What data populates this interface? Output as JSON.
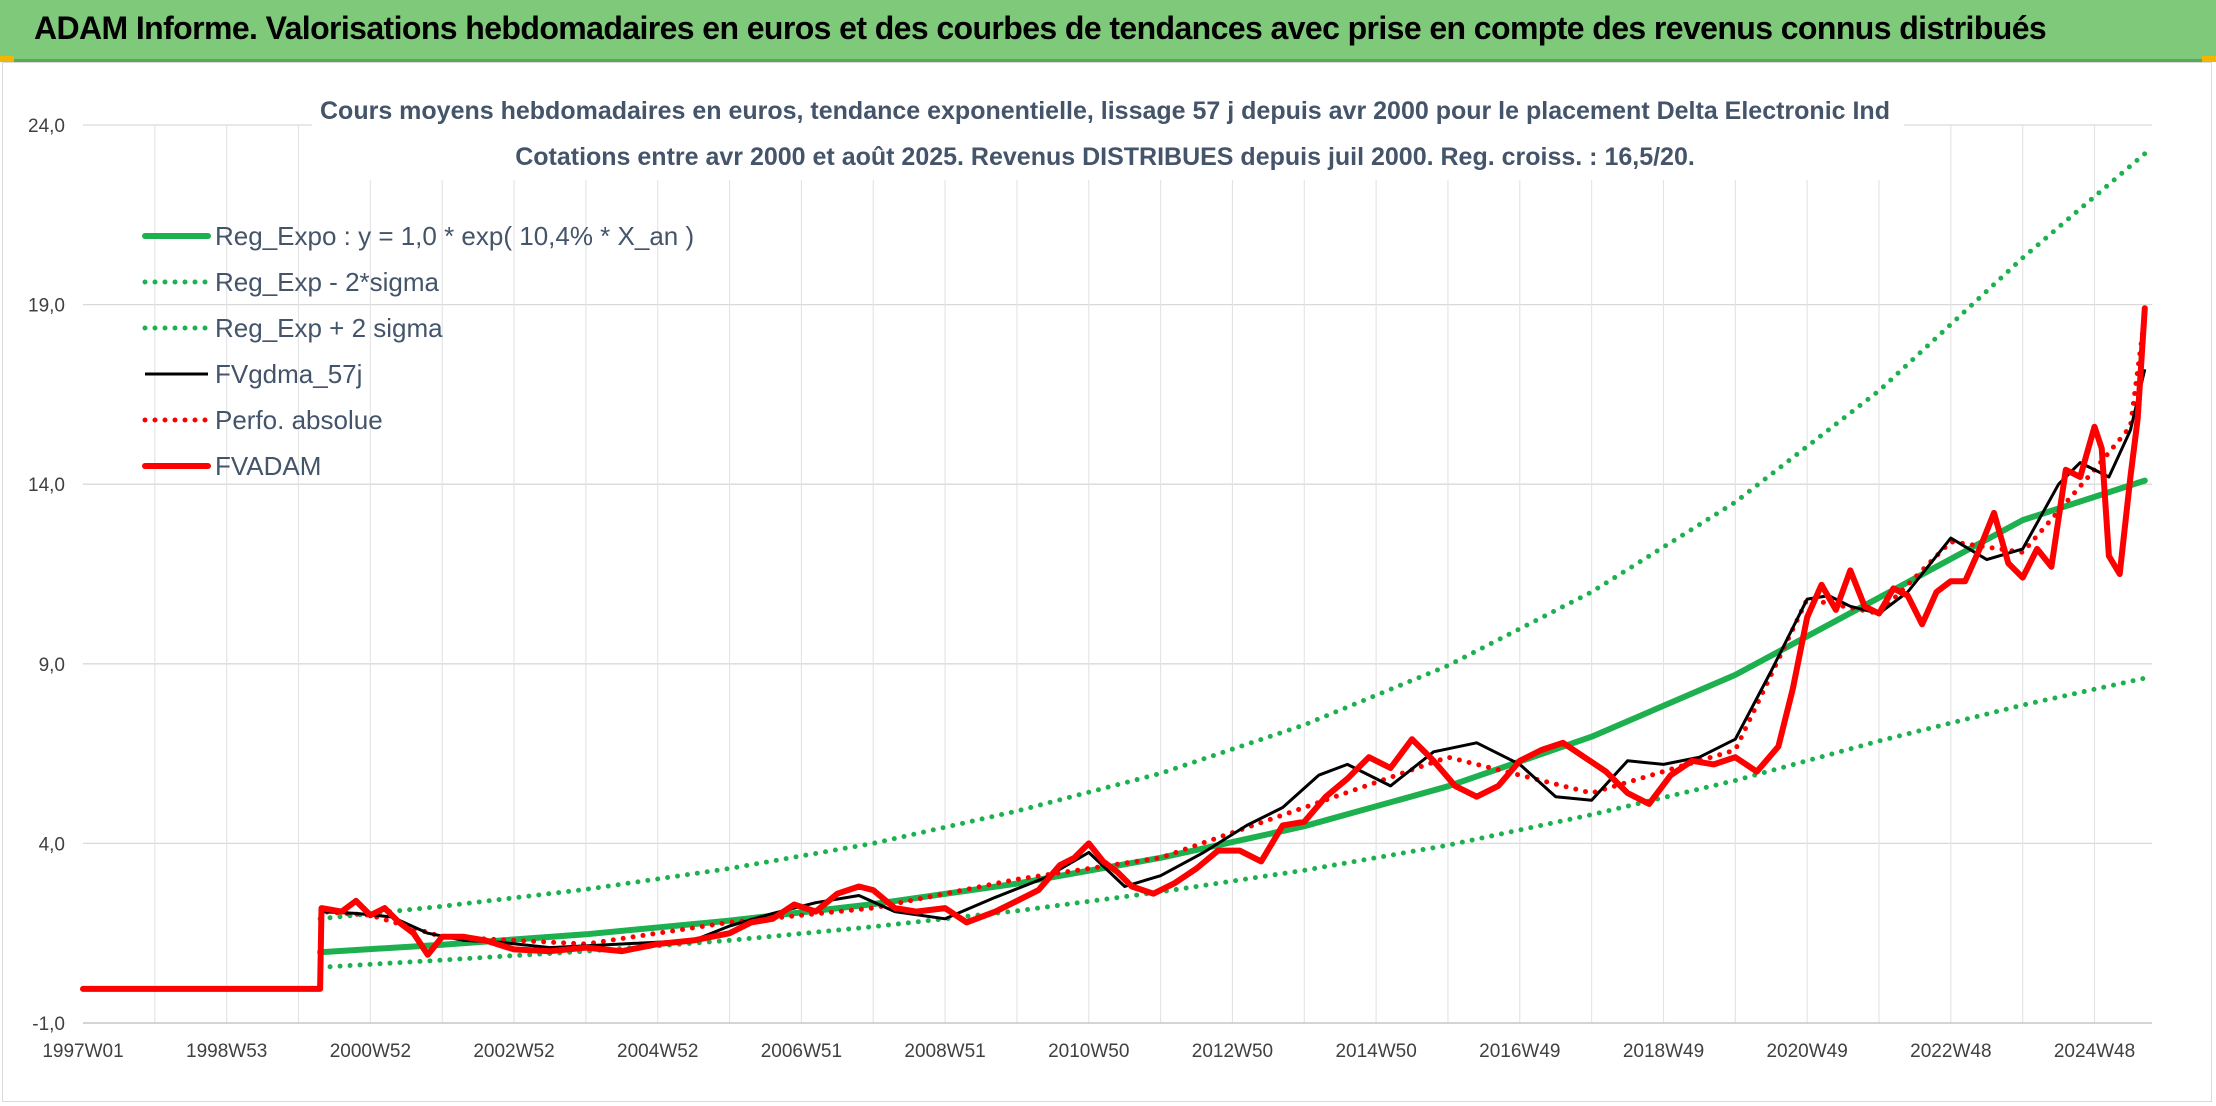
{
  "header": {
    "title": "ADAM Informe. Valorisations hebdomadaires en euros et des courbes de tendances avec prise en compte des revenus connus distribués"
  },
  "colors": {
    "banner": "#7fc97a",
    "trend": "#1db04f",
    "black": "#000000",
    "red": "#ff0000",
    "grid": "#d9d9d9",
    "title_text": "#44546a"
  },
  "chart_data": {
    "type": "line",
    "title": "Cours moyens hebdomadaires en euros, tendance exponentielle, lissage 57 j depuis avr 2000 pour le placement Delta Electronic Ind",
    "subtitle": "Cotations entre avr 2000 et août 2025. Revenus DISTRIBUES depuis juil 2000. Reg. croiss. : 16,5/20.",
    "xlabel": "",
    "ylabel": "",
    "ylim": [
      -1,
      24
    ],
    "xlim": [
      1997.0,
      2025.8
    ],
    "yticks": [
      "24,0",
      "19,0",
      "14,0",
      "9,0",
      "4,0",
      "-1,0"
    ],
    "ytick_values": [
      24,
      19,
      14,
      9,
      4,
      -1
    ],
    "xticks": [
      "1997W01",
      "1998W53",
      "2000W52",
      "2002W52",
      "2004W52",
      "2006W51",
      "2008W51",
      "2010W50",
      "2012W50",
      "2014W50",
      "2016W49",
      "2018W49",
      "2020W49",
      "2022W48",
      "2024W48"
    ],
    "xtick_values": [
      1997.0,
      1999.0,
      2001.0,
      2003.0,
      2005.0,
      2007.0,
      2009.0,
      2011.0,
      2013.0,
      2015.0,
      2017.0,
      2019.0,
      2021.0,
      2023.0,
      2025.0
    ],
    "grid": true,
    "legend_position": "top-left",
    "series": [
      {
        "name": "Reg_Expo : y = 1,0 * exp( 10,4% *  X_an )",
        "style": "solid-thick",
        "color": "#1db04f",
        "x": [
          2000.3,
          2002,
          2004,
          2006,
          2008,
          2010,
          2012,
          2014,
          2016,
          2018,
          2020,
          2022,
          2024,
          2025.7
        ],
        "y": [
          0.97,
          1.18,
          1.47,
          1.85,
          2.31,
          2.88,
          3.6,
          4.48,
          5.59,
          6.97,
          8.69,
          10.84,
          13.0,
          14.1
        ]
      },
      {
        "name": "Reg_Exp - 2*sigma",
        "style": "dotted",
        "color": "#1db04f",
        "x": [
          2000.3,
          2002,
          2004,
          2006,
          2008,
          2010,
          2012,
          2014,
          2016,
          2018,
          2020,
          2022,
          2024,
          2025.7
        ],
        "y": [
          0.55,
          0.75,
          1.0,
          1.3,
          1.68,
          2.12,
          2.65,
          3.25,
          3.95,
          4.8,
          5.75,
          6.85,
          7.85,
          8.6
        ]
      },
      {
        "name": "Reg_Exp + 2 sigma",
        "style": "dotted",
        "color": "#1db04f",
        "x": [
          2000.3,
          2002,
          2004,
          2006,
          2008,
          2010,
          2012,
          2014,
          2016,
          2018,
          2020,
          2022,
          2024,
          2025.7
        ],
        "y": [
          1.9,
          2.25,
          2.72,
          3.3,
          4.0,
          4.9,
          5.95,
          7.3,
          8.95,
          11.0,
          13.5,
          16.6,
          20.3,
          23.2
        ]
      },
      {
        "name": "FVgdma_57j",
        "style": "solid",
        "color": "#000000",
        "x": [
          2000.3,
          2000.8,
          2001.3,
          2001.8,
          2002.3,
          2002.8,
          2003.5,
          2004.5,
          2005.5,
          2006.0,
          2006.6,
          2007.2,
          2007.8,
          2008.3,
          2009.0,
          2009.7,
          2010.4,
          2011.0,
          2011.5,
          2012.0,
          2012.6,
          2013.2,
          2013.7,
          2014.2,
          2014.6,
          2015.2,
          2015.8,
          2016.4,
          2017.0,
          2017.5,
          2018.0,
          2018.5,
          2019.0,
          2019.5,
          2020.0,
          2020.5,
          2021.0,
          2021.3,
          2021.6,
          2022.0,
          2022.4,
          2023.0,
          2023.5,
          2024.0,
          2024.5,
          2024.8,
          2025.2,
          2025.5,
          2025.7
        ],
        "y": [
          2.1,
          2.05,
          1.95,
          1.5,
          1.3,
          1.25,
          1.1,
          1.2,
          1.3,
          1.7,
          2.05,
          2.35,
          2.55,
          2.1,
          1.9,
          2.5,
          3.05,
          3.75,
          2.8,
          3.1,
          3.75,
          4.5,
          5.0,
          5.9,
          6.2,
          5.6,
          6.55,
          6.8,
          6.2,
          5.3,
          5.2,
          6.3,
          6.2,
          6.4,
          6.9,
          8.8,
          10.8,
          10.9,
          10.6,
          10.4,
          11.0,
          12.5,
          11.9,
          12.2,
          14.0,
          14.6,
          14.2,
          15.5,
          17.2
        ]
      },
      {
        "name": "Perfo. absolue",
        "style": "dotted",
        "color": "#ff0000",
        "x": [
          1997.0,
          2000.3,
          2000.32,
          2001.0,
          2002.0,
          2004.0,
          2006.0,
          2008.0,
          2010.0,
          2012.0,
          2014.0,
          2016.0,
          2018.0,
          2020.0,
          2021.0,
          2022.0,
          2023.0,
          2024.0,
          2025.0,
          2025.5,
          2025.7
        ],
        "y": [
          -0.05,
          -0.05,
          2.1,
          2.0,
          1.4,
          1.2,
          1.8,
          2.2,
          3.0,
          3.6,
          5.0,
          6.4,
          5.4,
          6.6,
          10.8,
          10.4,
          12.4,
          12.1,
          14.4,
          15.6,
          18.7
        ]
      },
      {
        "name": "FVADAM",
        "style": "solid-thick",
        "color": "#ff0000",
        "x": [
          1997.0,
          2000.3,
          2000.32,
          2000.6,
          2000.8,
          2001.0,
          2001.2,
          2001.4,
          2001.6,
          2001.8,
          2002.0,
          2002.3,
          2002.6,
          2003.0,
          2003.5,
          2004.0,
          2004.5,
          2005.0,
          2005.5,
          2006.0,
          2006.3,
          2006.6,
          2006.9,
          2007.2,
          2007.5,
          2007.8,
          2008.0,
          2008.3,
          2008.6,
          2009.0,
          2009.3,
          2009.7,
          2010.0,
          2010.3,
          2010.6,
          2010.8,
          2011.0,
          2011.2,
          2011.4,
          2011.6,
          2011.9,
          2012.2,
          2012.5,
          2012.8,
          2013.1,
          2013.4,
          2013.7,
          2014.0,
          2014.3,
          2014.6,
          2014.9,
          2015.2,
          2015.5,
          2015.8,
          2016.1,
          2016.4,
          2016.7,
          2017.0,
          2017.3,
          2017.6,
          2017.9,
          2018.2,
          2018.5,
          2018.8,
          2019.1,
          2019.4,
          2019.7,
          2020.0,
          2020.3,
          2020.6,
          2020.8,
          2021.0,
          2021.2,
          2021.4,
          2021.6,
          2021.8,
          2022.0,
          2022.2,
          2022.4,
          2022.6,
          2022.8,
          2023.0,
          2023.2,
          2023.4,
          2023.6,
          2023.8,
          2024.0,
          2024.2,
          2024.4,
          2024.6,
          2024.8,
          2025.0,
          2025.1,
          2025.2,
          2025.35,
          2025.5,
          2025.6,
          2025.7
        ],
        "y": [
          -0.05,
          -0.05,
          2.2,
          2.1,
          2.4,
          2.0,
          2.2,
          1.8,
          1.5,
          0.9,
          1.4,
          1.4,
          1.3,
          1.05,
          1.0,
          1.1,
          1.0,
          1.2,
          1.3,
          1.5,
          1.8,
          1.9,
          2.3,
          2.1,
          2.6,
          2.8,
          2.7,
          2.2,
          2.1,
          2.2,
          1.8,
          2.1,
          2.4,
          2.7,
          3.4,
          3.6,
          4.0,
          3.5,
          3.2,
          2.8,
          2.6,
          2.9,
          3.3,
          3.8,
          3.8,
          3.5,
          4.5,
          4.6,
          5.3,
          5.8,
          6.4,
          6.1,
          6.9,
          6.3,
          5.6,
          5.3,
          5.6,
          6.3,
          6.6,
          6.8,
          6.4,
          6.0,
          5.4,
          5.1,
          5.9,
          6.3,
          6.2,
          6.4,
          6.0,
          6.7,
          8.3,
          10.3,
          11.2,
          10.5,
          11.6,
          10.6,
          10.4,
          11.1,
          10.9,
          10.1,
          11.0,
          11.3,
          11.3,
          12.2,
          13.2,
          11.8,
          11.4,
          12.2,
          11.7,
          14.4,
          14.2,
          15.6,
          15.0,
          12.0,
          11.5,
          14.2,
          15.8,
          18.9
        ]
      }
    ]
  }
}
